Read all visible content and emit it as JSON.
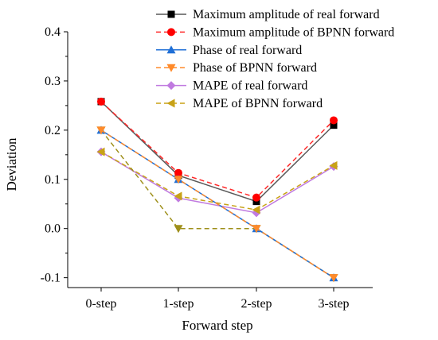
{
  "chart_data": {
    "type": "line",
    "title": "",
    "xlabel": "Forward step",
    "ylabel": "Deviation",
    "categories": [
      "0-step",
      "1-step",
      "2-step",
      "3-step"
    ],
    "ylim": [
      -0.12,
      0.4
    ],
    "yticks": [
      -0.1,
      0.0,
      0.1,
      0.2,
      0.3,
      0.4
    ],
    "ytick_labels": [
      "-0.1",
      "0.0",
      "0.1",
      "0.2",
      "0.3",
      "0.4"
    ],
    "grid": false,
    "legend_position": "top-right",
    "series": [
      {
        "name": "Maximum amplitude of real forward",
        "values": [
          0.258,
          0.108,
          0.055,
          0.21
        ],
        "color": "#595959",
        "dash": "solid",
        "marker": "square",
        "marker_color": "#000000"
      },
      {
        "name": "Maximum amplitude of BPNN forward",
        "values": [
          0.258,
          0.113,
          0.063,
          0.22
        ],
        "color": "#ff2a2a",
        "dash": "dashed",
        "marker": "circle",
        "marker_color": "#ff0000"
      },
      {
        "name": "Phase of real forward",
        "values": [
          0.2,
          0.1,
          0.0,
          -0.1
        ],
        "color": "#1f6fd6",
        "dash": "solid",
        "marker": "triangle-up",
        "marker_color": "#1f6fd6"
      },
      {
        "name": "Phase of BPNN forward",
        "values": [
          0.2,
          0.1,
          0.0,
          -0.1
        ],
        "color": "#ff8a2a",
        "dash": "dashed",
        "marker": "triangle-down",
        "marker_color": "#ff8a2a"
      },
      {
        "name": "MAPE of real forward",
        "values": [
          0.156,
          0.062,
          0.032,
          0.126
        ],
        "color": "#c07ae0",
        "dash": "solid",
        "marker": "diamond",
        "marker_color": "#c07ae0"
      },
      {
        "name": "MAPE of BPNN forward",
        "values": [
          0.156,
          0.066,
          0.038,
          0.128
        ],
        "color": "#c8a217",
        "dash": "dashed",
        "marker": "triangle-left",
        "marker_color": "#c8a217"
      },
      {
        "name": "",
        "values": [
          0.2,
          0.0,
          0.0,
          -0.1
        ],
        "color": "#9e8f1a",
        "dash": "dashed",
        "marker": "triangle-down",
        "marker_color": "#9e8f1a"
      }
    ]
  }
}
